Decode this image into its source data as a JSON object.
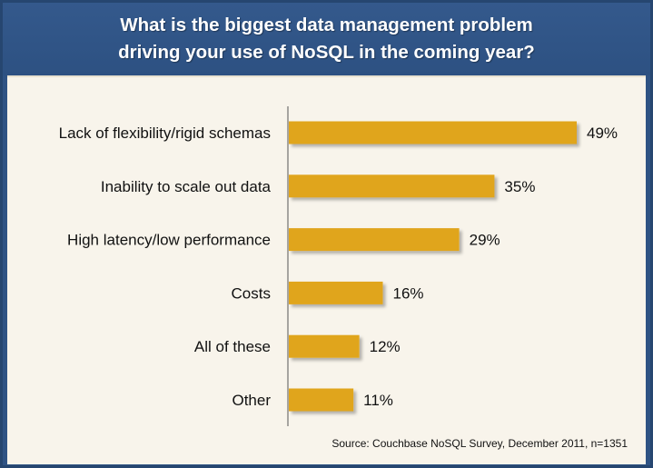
{
  "colors": {
    "frame": "#2f5384",
    "panel": "#f8f4eb",
    "bar": "#e0a51f",
    "bar_shadow": "#b9b3a6",
    "axis": "#555555"
  },
  "header": {
    "title_line1": "What is the biggest data management problem",
    "title_line2": "driving your use of NoSQL in the coming year?"
  },
  "footer": {
    "source": "Source: Couchbase NoSQL Survey, December 2011, n=1351"
  },
  "chart_data": {
    "type": "bar",
    "orientation": "horizontal",
    "categories": [
      "Lack of flexibility/rigid schemas",
      "Inability to scale out data",
      "High latency/low performance",
      "Costs",
      "All of these",
      "Other"
    ],
    "values": [
      49,
      35,
      29,
      16,
      12,
      11
    ],
    "value_labels": [
      "49%",
      "35%",
      "29%",
      "16%",
      "12%",
      "11%"
    ],
    "unit": "%",
    "xlim": [
      0,
      50
    ],
    "grid": false,
    "legend": "none"
  }
}
